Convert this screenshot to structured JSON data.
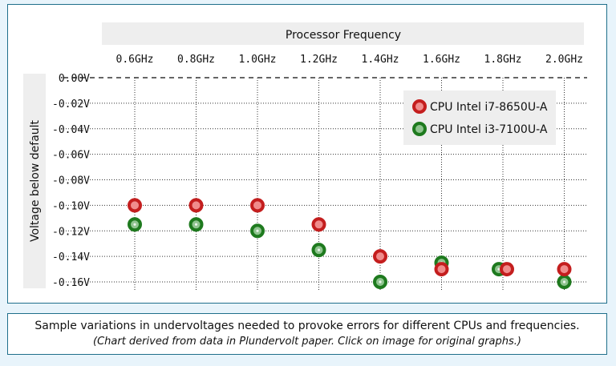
{
  "colors": {
    "red_fill": "#f08c8c",
    "red_stroke": "#c41e1e",
    "green_fill": "#8fc48f",
    "green_stroke": "#1e7a1e",
    "header_bg": "#eeeeee",
    "frame": "#1f6f8b"
  },
  "chart_data": {
    "type": "scatter",
    "title": "",
    "xlabel": "Processor Frequency",
    "ylabel": "Voltage below default",
    "x_axis_position": "top",
    "categories": [
      "0.6GHz",
      "0.8GHz",
      "1.0GHz",
      "1.2GHz",
      "1.4GHz",
      "1.6GHz",
      "1.8GHz",
      "2.0GHz"
    ],
    "y_ticks": [
      "0.00V",
      "-0.02V",
      "-0.04V",
      "-0.06V",
      "-0.08V",
      "-0.10V",
      "-0.12V",
      "-0.14V",
      "-0.16V"
    ],
    "ylim": [
      -0.16,
      0.0
    ],
    "grid": true,
    "legend_position": "top-right",
    "series": [
      {
        "name": "CPU Intel i7-8650U-A",
        "color": "red",
        "values": [
          -0.1,
          -0.1,
          -0.1,
          -0.115,
          -0.14,
          -0.15,
          -0.15,
          -0.15
        ]
      },
      {
        "name": "CPU Intel i3-7100U-A",
        "color": "green",
        "values": [
          -0.115,
          -0.115,
          -0.12,
          -0.135,
          -0.16,
          -0.145,
          -0.15,
          -0.16
        ]
      }
    ]
  },
  "caption": {
    "line1": "Sample variations in undervoltages needed to provoke errors for different CPUs and frequencies.",
    "line2": "(Chart derived from data in Plundervolt paper. Click on image for original graphs.)"
  }
}
